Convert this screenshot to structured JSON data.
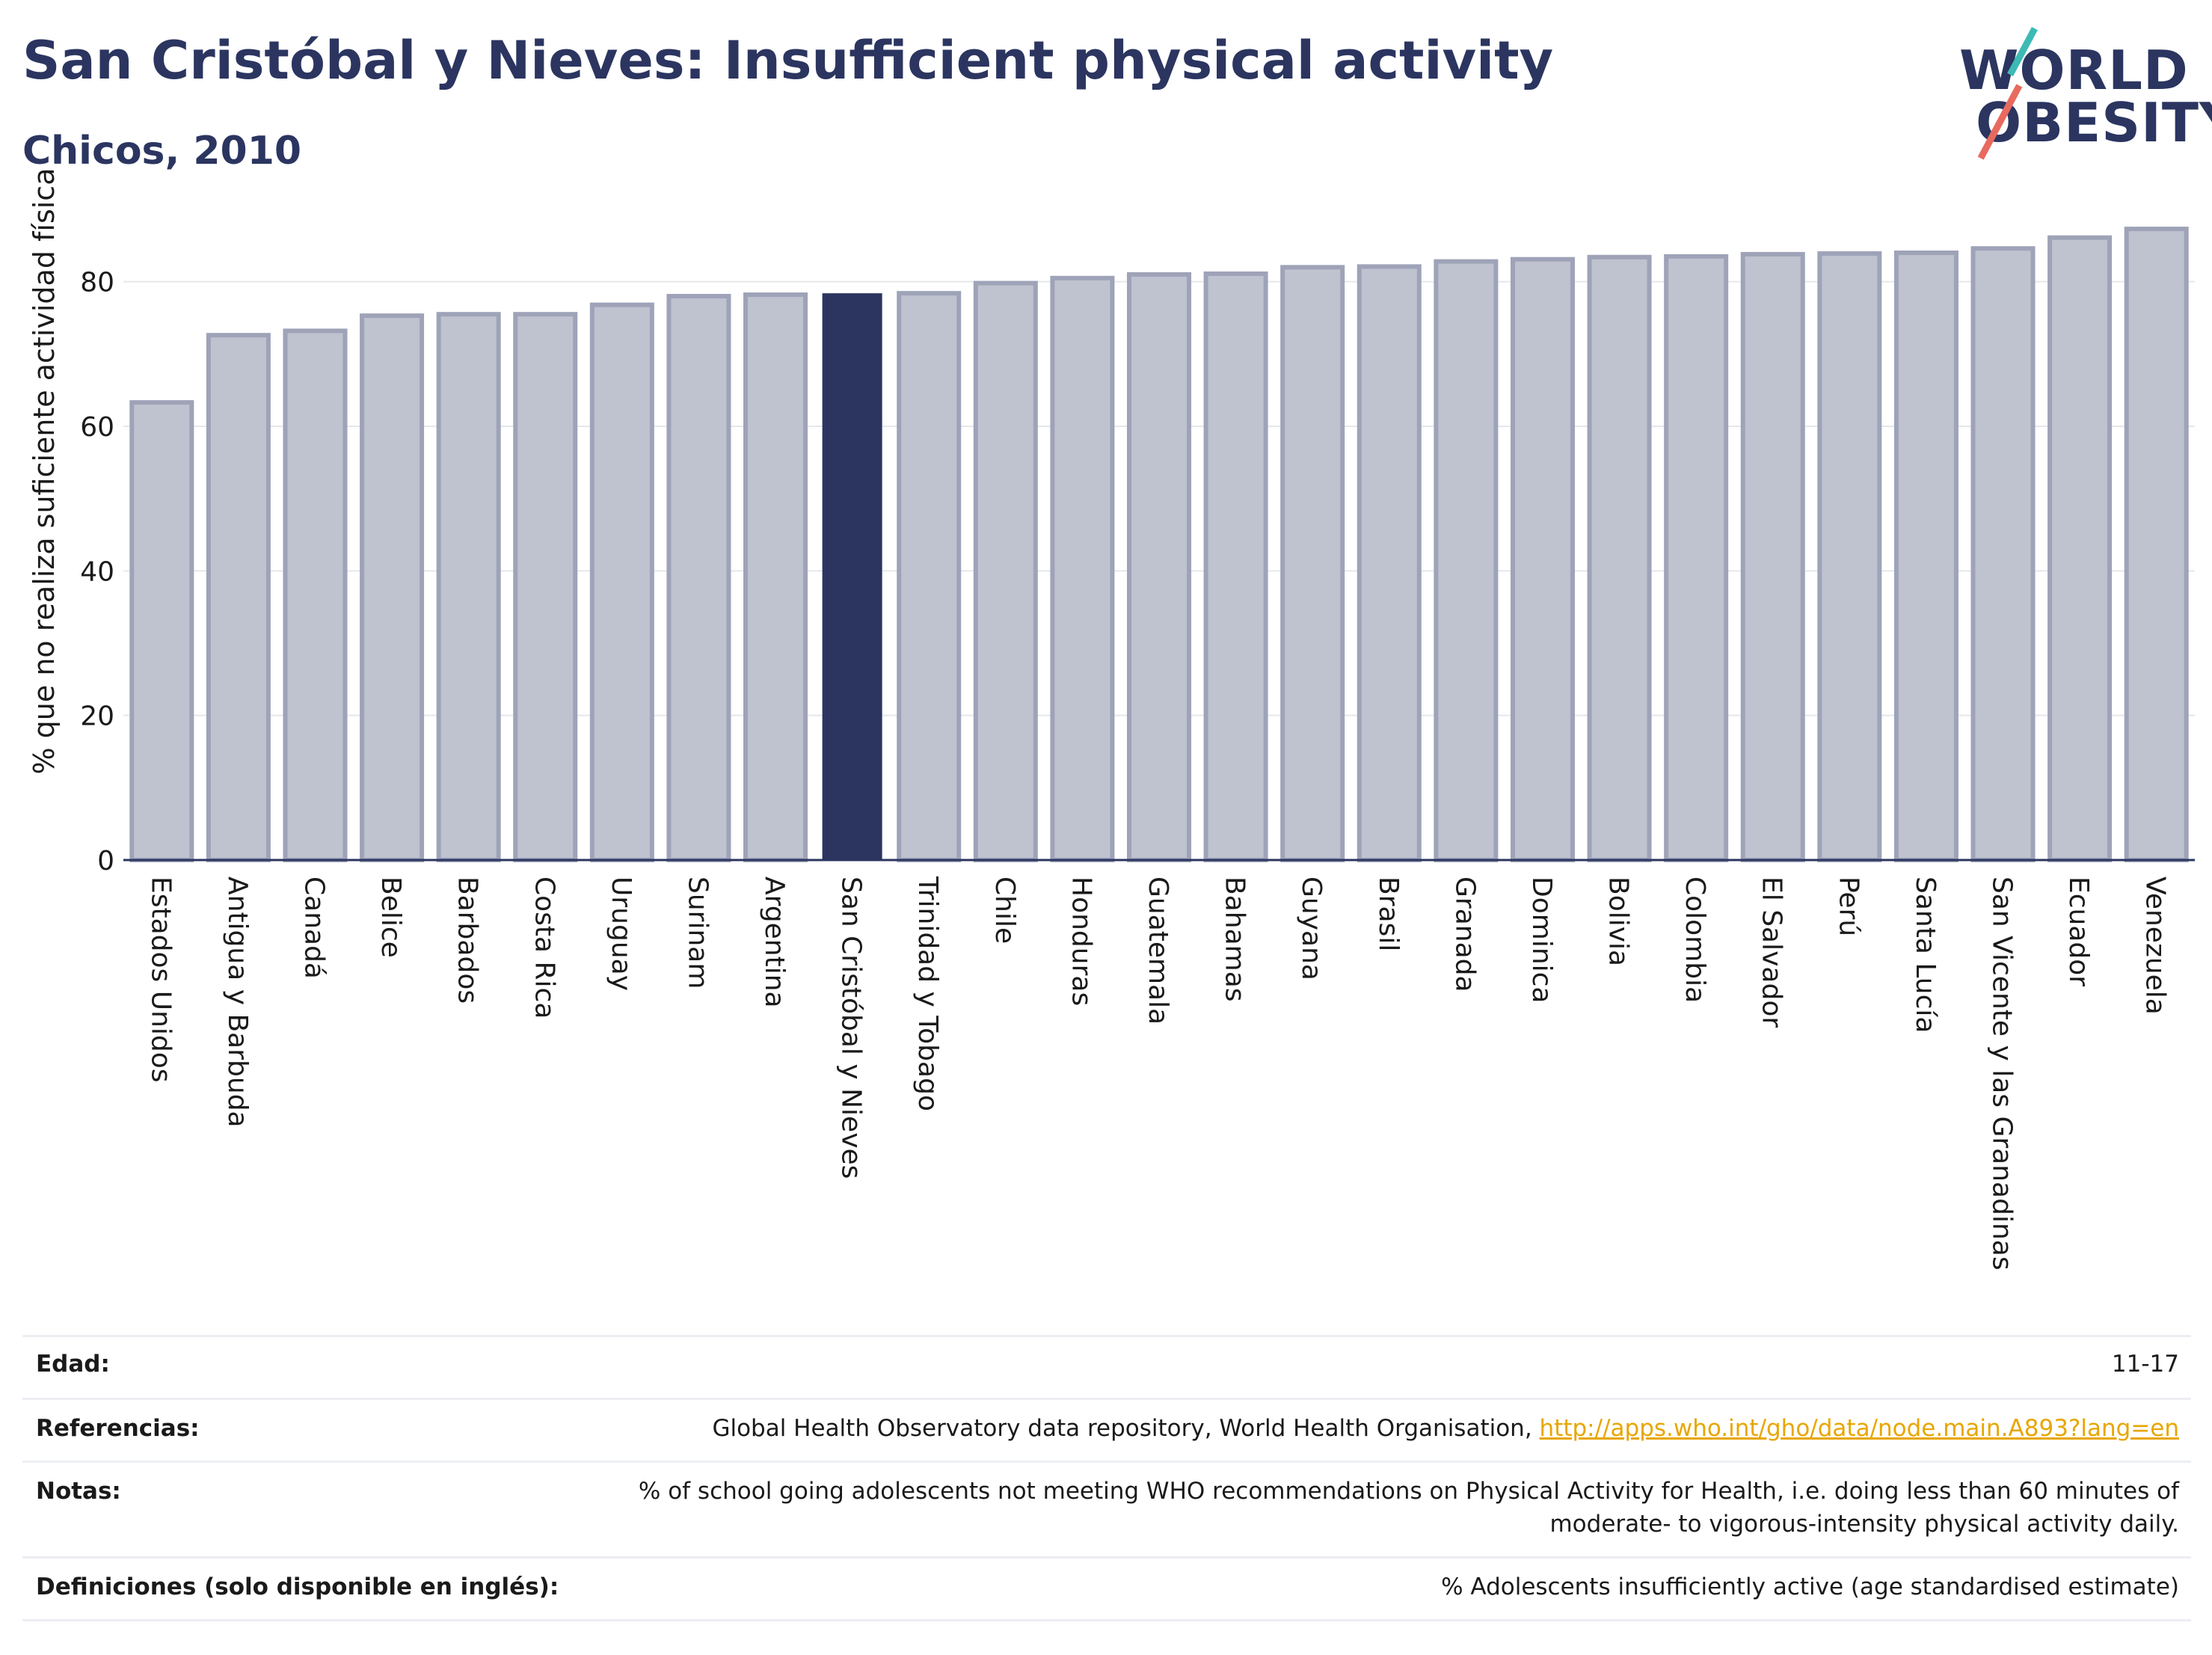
{
  "header": {
    "title": "San Cristóbal y Nieves: Insufficient physical activity",
    "subtitle": "Chicos, 2010"
  },
  "logo": {
    "line1": "WORLD",
    "line2": "OBESITY",
    "colors": {
      "navy": "#2b3560",
      "teal": "#3dbab5",
      "red": "#e86a5f"
    }
  },
  "chart_data": {
    "type": "bar",
    "title": "",
    "xlabel": "",
    "ylabel": "% que no realiza suficiente actividad física",
    "ylim": [
      0,
      90
    ],
    "yticks": [
      0,
      20,
      40,
      60,
      80
    ],
    "grid": true,
    "highlight": "San Cristóbal y Nieves",
    "colors": {
      "bar": "#bfc2cf",
      "bar_edge": "#9ea3b8",
      "highlight": "#2b3560"
    },
    "categories": [
      "Estados Unidos",
      "Antigua y Barbuda",
      "Canadá",
      "Belice",
      "Barbados",
      "Costa Rica",
      "Uruguay",
      "Surinam",
      "Argentina",
      "San Cristóbal y Nieves",
      "Trinidad y Tobago",
      "Chile",
      "Honduras",
      "Guatemala",
      "Bahamas",
      "Guyana",
      "Brasil",
      "Granada",
      "Dominica",
      "Bolivia",
      "Colombia",
      "El Salvador",
      "Perú",
      "Santa Lucía",
      "San Vicente y las Granadinas",
      "Ecuador",
      "Venezuela"
    ],
    "values": [
      63.3,
      72.6,
      73.2,
      75.3,
      75.5,
      75.5,
      76.8,
      78.0,
      78.2,
      78.4,
      78.4,
      79.8,
      80.5,
      81.0,
      81.1,
      82.0,
      82.1,
      82.8,
      83.1,
      83.4,
      83.5,
      83.8,
      83.9,
      84.0,
      84.6,
      86.1,
      87.3
    ]
  },
  "table": {
    "rows": [
      {
        "label": "Edad:",
        "value": "11-17"
      },
      {
        "label": "Referencias:",
        "value": "Global Health Observatory data repository, World Health Organisation, ",
        "link": "http://apps.who.int/gho/data/node.main.A893?lang=en"
      },
      {
        "label": "Notas:",
        "value": "% of school going adolescents not meeting WHO recommendations on Physical Activity for Health, i.e. doing less than 60 minutes of",
        "value2": "moderate- to vigorous-intensity physical activity daily."
      },
      {
        "label": "Definiciones (solo disponible en inglés):",
        "value": "% Adolescents insufficiently active (age standardised estimate)"
      }
    ]
  }
}
